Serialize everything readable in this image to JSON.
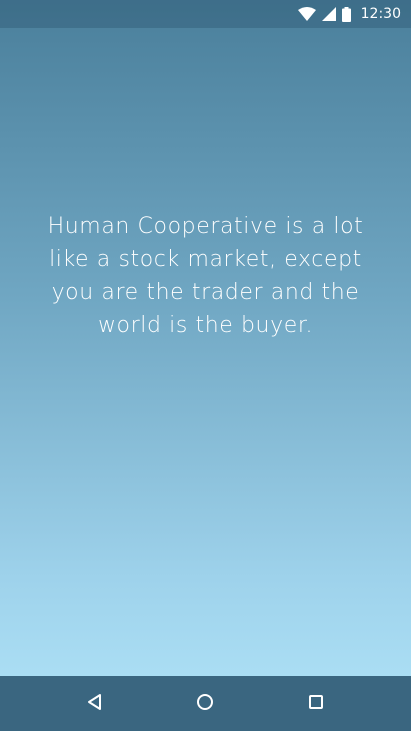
{
  "status_bar": {
    "time": "12:30",
    "icons": [
      "wifi-icon",
      "cell-signal-icon",
      "battery-icon"
    ]
  },
  "main": {
    "intro_text": "Human Cooperative is a lot like a stock market, except you are the trader and the world is the buyer."
  },
  "nav_bar": {
    "buttons": [
      "back-icon",
      "home-icon",
      "recents-icon"
    ]
  },
  "colors": {
    "gradient_top": "#4a7f9b",
    "gradient_bottom": "#b1e4f8",
    "nav_bar": "#3a6680",
    "text": "#ffffff"
  }
}
